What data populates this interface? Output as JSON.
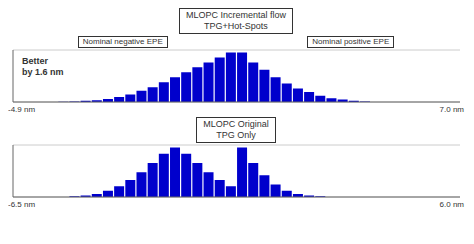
{
  "chart_data": [
    {
      "type": "bar",
      "title": "MLOPC Incremental flow\nTPG+Hot-Spots",
      "categories": [
        null,
        null,
        null,
        null,
        null,
        null,
        null,
        null,
        null,
        null,
        null,
        null,
        null,
        null,
        null,
        null,
        null,
        null,
        null,
        null,
        null,
        null,
        null,
        null,
        null,
        null,
        null,
        null,
        null,
        null,
        null,
        null,
        null,
        null,
        null,
        null,
        null,
        null,
        null,
        null
      ],
      "values": [
        0,
        0,
        0,
        0,
        0.2,
        0.5,
        1,
        1.5,
        2.5,
        4,
        6,
        9,
        12,
        16,
        20,
        24,
        28,
        32,
        36,
        40,
        40,
        32,
        26,
        20,
        15,
        11,
        8,
        5,
        3,
        2,
        1,
        0.5,
        0,
        0,
        0,
        0,
        0,
        0,
        0,
        0
      ],
      "color": "#0000CC",
      "ylim": [
        0,
        42
      ],
      "yticks": [
        0,
        10,
        20,
        30,
        40
      ],
      "grid": true,
      "tick_labels": false,
      "annotations": [
        "Nominal negative EPE",
        "Nominal positive EPE",
        "Better\nby 1.6 nm",
        "-4.9 nm",
        "7.0 nm"
      ]
    },
    {
      "type": "bar",
      "title": "MLOPC Original\nTPG Only",
      "categories": [
        null,
        null,
        null,
        null,
        null,
        null,
        null,
        null,
        null,
        null,
        null,
        null,
        null,
        null,
        null,
        null,
        null,
        null,
        null,
        null,
        null,
        null,
        null,
        null,
        null,
        null,
        null,
        null,
        null,
        null,
        null,
        null,
        null,
        null,
        null,
        null,
        null,
        null,
        null,
        null
      ],
      "values": [
        0,
        0,
        0,
        0,
        0,
        0.5,
        1,
        2,
        4,
        7,
        11,
        16,
        22,
        28,
        32,
        28,
        22,
        16,
        11,
        7,
        32,
        22,
        14,
        8,
        4,
        2,
        1,
        0.5,
        0,
        0,
        0,
        0,
        0,
        0,
        0,
        0,
        0,
        0,
        0,
        0
      ],
      "color": "#0000CC",
      "ylim": [
        0,
        33.6
      ],
      "yticks": [
        0,
        5,
        10,
        15,
        20,
        25,
        30
      ],
      "grid": true,
      "tick_labels": false,
      "annotations": [
        "-6.5 nm",
        "6.0 nm"
      ]
    }
  ]
}
